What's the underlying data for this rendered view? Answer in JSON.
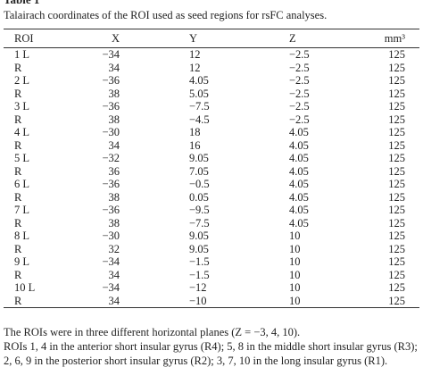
{
  "title": "Table 1",
  "caption": "Talairach coordinates of the ROI used as seed regions for rsFC analyses.",
  "table": {
    "header": [
      "ROI",
      "X",
      "Y",
      "Z",
      "mm³"
    ],
    "rows": [
      [
        "1 L",
        "−34",
        "12",
        "−2.5",
        "125"
      ],
      [
        "R",
        "34",
        "12",
        "−2.5",
        "125"
      ],
      [
        "2 L",
        "−36",
        "4.05",
        "−2.5",
        "125"
      ],
      [
        "R",
        "38",
        "5.05",
        "−2.5",
        "125"
      ],
      [
        "3 L",
        "−36",
        "−7.5",
        "−2.5",
        "125"
      ],
      [
        "R",
        "38",
        "−4.5",
        "−2.5",
        "125"
      ],
      [
        "4 L",
        "−30",
        "18",
        "4.05",
        "125"
      ],
      [
        "R",
        "34",
        "16",
        "4.05",
        "125"
      ],
      [
        "5 L",
        "−32",
        "9.05",
        "4.05",
        "125"
      ],
      [
        "R",
        "36",
        "7.05",
        "4.05",
        "125"
      ],
      [
        "6 L",
        "−36",
        "−0.5",
        "4.05",
        "125"
      ],
      [
        "R",
        "38",
        "0.05",
        "4.05",
        "125"
      ],
      [
        "7 L",
        "−36",
        "−9.5",
        "4.05",
        "125"
      ],
      [
        "R",
        "38",
        "−7.5",
        "4.05",
        "125"
      ],
      [
        "8 L",
        "−30",
        "9.05",
        "10",
        "125"
      ],
      [
        "R",
        "32",
        "9.05",
        "10",
        "125"
      ],
      [
        "9 L",
        "−34",
        "−1.5",
        "10",
        "125"
      ],
      [
        "R",
        "34",
        "−1.5",
        "10",
        "125"
      ],
      [
        "10 L",
        "−34",
        "−12",
        "10",
        "125"
      ],
      [
        "R",
        "34",
        "−10",
        "10",
        "125"
      ]
    ]
  },
  "footnotes": [
    "The ROIs were in three different horizontal planes (Z = −3, 4, 10).",
    "ROIs 1, 4 in the anterior short insular gyrus (R4); 5, 8 in the middle short insular gyrus (R3); 2, 6, 9 in the posterior short insular gyrus (R2); 3, 7, 10 in the long insular gyrus (R1)."
  ]
}
